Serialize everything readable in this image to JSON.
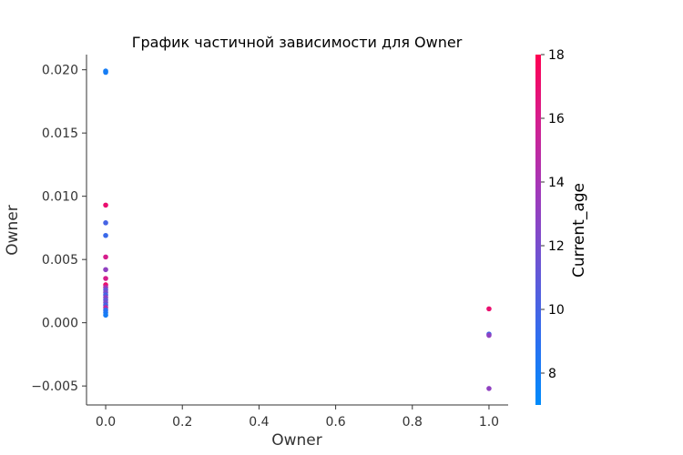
{
  "chart_data": {
    "type": "scatter",
    "title": "График частичной зависимости для Owner",
    "xlabel": "Owner",
    "ylabel": "Owner",
    "xlim": [
      -0.05,
      1.05
    ],
    "ylim": [
      -0.0065,
      0.0212
    ],
    "xticks": [
      0.0,
      0.2,
      0.4,
      0.6,
      0.8,
      1.0
    ],
    "xtick_labels": [
      "0.0",
      "0.2",
      "0.4",
      "0.6",
      "0.8",
      "1.0"
    ],
    "yticks": [
      -0.005,
      0.0,
      0.005,
      0.01,
      0.015,
      0.02
    ],
    "ytick_labels": [
      "−0.005",
      "0.000",
      "0.005",
      "0.010",
      "0.015",
      "0.020"
    ],
    "colorbar": {
      "label": "Current_age",
      "range": [
        7,
        18
      ],
      "ticks": [
        8,
        10,
        12,
        14,
        16,
        18
      ],
      "tick_labels": [
        "8",
        "10",
        "12",
        "14",
        "16",
        "18"
      ],
      "colors": [
        "#008bfb",
        "#ff0052"
      ]
    },
    "points": [
      {
        "x": 0.0,
        "y": 0.0198,
        "c": 8
      },
      {
        "x": 0.0,
        "y": 0.0199,
        "c": 8
      },
      {
        "x": 0.0,
        "y": 0.0093,
        "c": 17
      },
      {
        "x": 0.0,
        "y": 0.0079,
        "c": 10
      },
      {
        "x": 0.0,
        "y": 0.0069,
        "c": 9.5
      },
      {
        "x": 0.0,
        "y": 0.0052,
        "c": 16
      },
      {
        "x": 0.0,
        "y": 0.0042,
        "c": 13
      },
      {
        "x": 0.0,
        "y": 0.0035,
        "c": 16
      },
      {
        "x": 0.0,
        "y": 0.003,
        "c": 17
      },
      {
        "x": 0.0,
        "y": 0.0028,
        "c": 14
      },
      {
        "x": 0.0,
        "y": 0.0026,
        "c": 11
      },
      {
        "x": 0.0,
        "y": 0.0024,
        "c": 12
      },
      {
        "x": 0.0,
        "y": 0.0022,
        "c": 10
      },
      {
        "x": 0.0,
        "y": 0.002,
        "c": 13
      },
      {
        "x": 0.0,
        "y": 0.0018,
        "c": 11
      },
      {
        "x": 0.0,
        "y": 0.0016,
        "c": 12
      },
      {
        "x": 0.0,
        "y": 0.0014,
        "c": 10
      },
      {
        "x": 0.0,
        "y": 0.0012,
        "c": 15
      },
      {
        "x": 0.0,
        "y": 0.001,
        "c": 9
      },
      {
        "x": 0.0,
        "y": 0.0008,
        "c": 8.5
      },
      {
        "x": 0.0,
        "y": 0.0006,
        "c": 8
      },
      {
        "x": 1.0,
        "y": 0.0011,
        "c": 17
      },
      {
        "x": 1.0,
        "y": -0.0009,
        "c": 10
      },
      {
        "x": 1.0,
        "y": -0.001,
        "c": 13
      },
      {
        "x": 1.0,
        "y": -0.0052,
        "c": 13
      }
    ]
  }
}
